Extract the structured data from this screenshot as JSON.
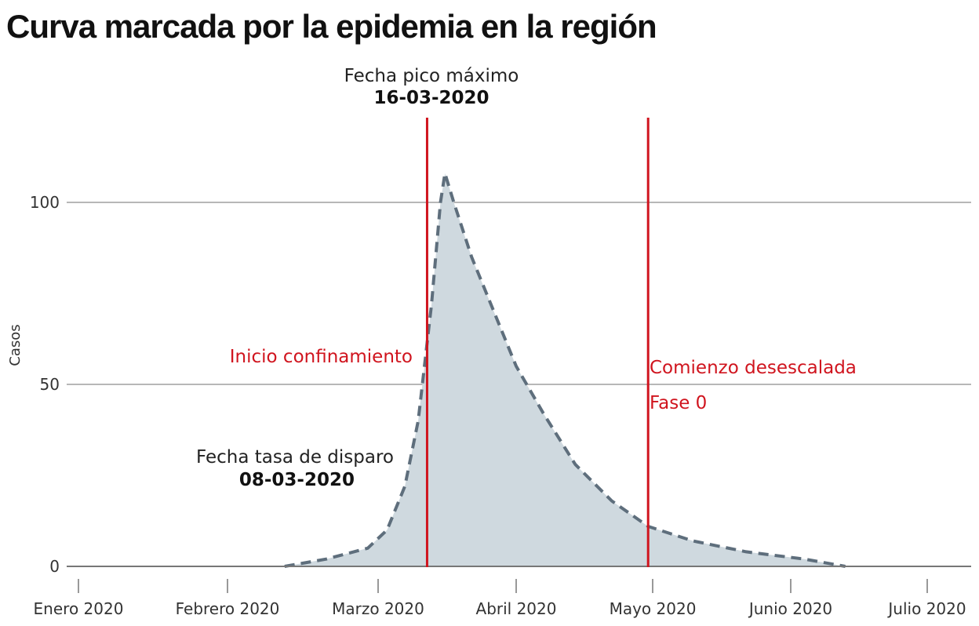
{
  "title": "Curva marcada por la epidemia en la región",
  "chart_data": {
    "type": "area",
    "ylabel": "Casos",
    "ylim": [
      0,
      120
    ],
    "yticks": [
      0,
      50,
      100
    ],
    "xticks": [
      "Enero 2020",
      "Febrero 2020",
      "Marzo 2020",
      "Abril 2020",
      "Mayo 2020",
      "Junio 2020",
      "Julio 2020"
    ],
    "grid": true,
    "series": [
      {
        "line_style": "dashed",
        "color": "#5e6e7c",
        "fill": "#cfd9df",
        "x": [
          "2020-02-12",
          "2020-02-20",
          "2020-02-28",
          "2020-03-03",
          "2020-03-07",
          "2020-03-10",
          "2020-03-13",
          "2020-03-15",
          "2020-03-16",
          "2020-03-18",
          "2020-03-22",
          "2020-03-27",
          "2020-04-01",
          "2020-04-07",
          "2020-04-14",
          "2020-04-22",
          "2020-04-30",
          "2020-05-10",
          "2020-05-22",
          "2020-06-04",
          "2020-06-13"
        ],
        "y": [
          0,
          2,
          5,
          10,
          22,
          40,
          72,
          100,
          108,
          100,
          85,
          70,
          55,
          42,
          28,
          18,
          11,
          7,
          4,
          2,
          0
        ]
      }
    ],
    "markers": [
      {
        "date": "2020-03-12",
        "label": "Inicio confinamiento",
        "color": "#d0141e"
      },
      {
        "date": "2020-04-30",
        "label": "Comienzo desescalada",
        "sublabel": "Fase 0",
        "color": "#d0141e"
      }
    ],
    "annotations": [
      {
        "label": "Fecha pico máximo",
        "value": "16-03-2020"
      },
      {
        "label": "Fecha tasa de disparo",
        "value": "08-03-2020"
      }
    ]
  }
}
